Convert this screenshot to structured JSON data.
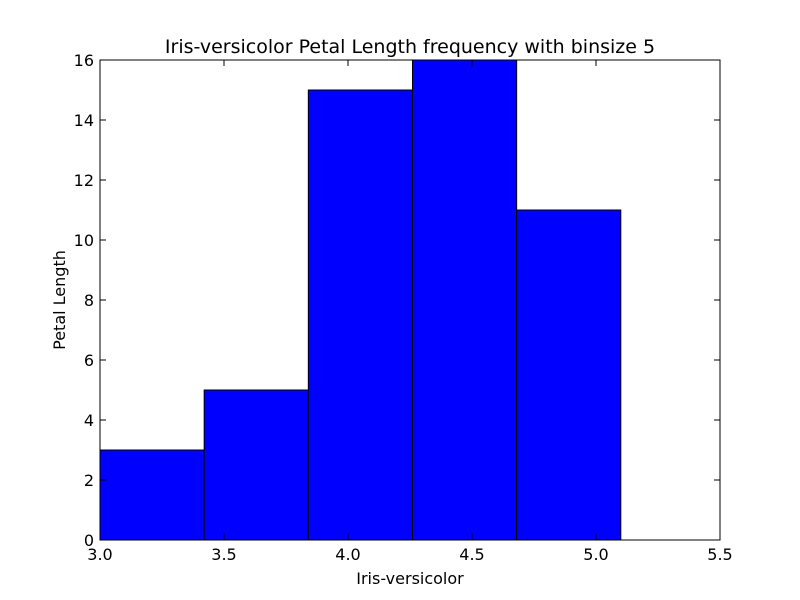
{
  "chart_data": {
    "type": "bar",
    "title": "Iris-versicolor Petal Length frequency with binsize 5",
    "xlabel": "Iris-versicolor",
    "ylabel": "Petal Length",
    "xlim": [
      3.0,
      5.5
    ],
    "ylim": [
      0,
      16
    ],
    "grid": false,
    "bar_color": "#0000ff",
    "edge_color": "#000000",
    "bins": [
      {
        "x0": 3.0,
        "x1": 3.42,
        "value": 3
      },
      {
        "x0": 3.42,
        "x1": 3.84,
        "value": 5
      },
      {
        "x0": 3.84,
        "x1": 4.26,
        "value": 15
      },
      {
        "x0": 4.26,
        "x1": 4.68,
        "value": 16
      },
      {
        "x0": 4.68,
        "x1": 5.1,
        "value": 11
      }
    ],
    "x_ticks": [
      {
        "value": 3.0,
        "label": "3.0"
      },
      {
        "value": 3.5,
        "label": "3.5"
      },
      {
        "value": 4.0,
        "label": "4.0"
      },
      {
        "value": 4.5,
        "label": "4.5"
      },
      {
        "value": 5.0,
        "label": "5.0"
      },
      {
        "value": 5.5,
        "label": "5.5"
      }
    ],
    "y_ticks": [
      {
        "value": 0,
        "label": "0"
      },
      {
        "value": 2,
        "label": "2"
      },
      {
        "value": 4,
        "label": "4"
      },
      {
        "value": 6,
        "label": "6"
      },
      {
        "value": 8,
        "label": "8"
      },
      {
        "value": 10,
        "label": "10"
      },
      {
        "value": 12,
        "label": "12"
      },
      {
        "value": 14,
        "label": "14"
      },
      {
        "value": 16,
        "label": "16"
      }
    ]
  }
}
